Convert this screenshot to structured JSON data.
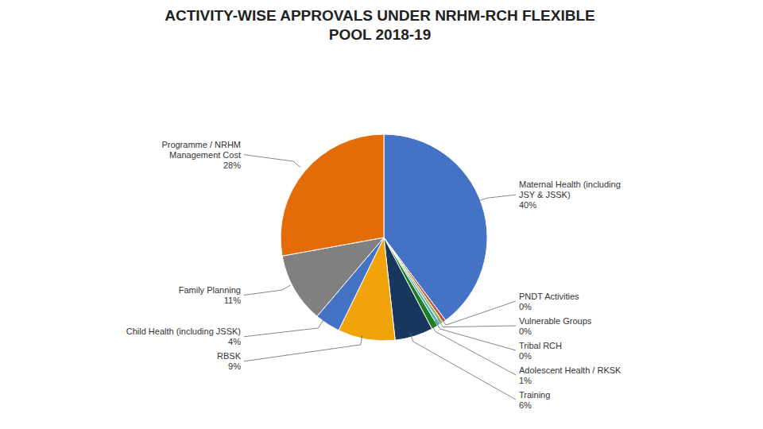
{
  "chart_data": {
    "type": "pie",
    "title": "ACTIVITY-WISE APPROVALS UNDER NRHM-RCH FLEXIBLE\nPOOL 2018-19",
    "categories": [
      "Maternal Health (including\nJSY & JSSK)",
      "PNDT Activities",
      "Vulnerable Groups",
      "Tribal RCH",
      "Adolescent Health / RKSK",
      "Training",
      "RBSK",
      "Child Health (including JSSK)",
      "Family Planning",
      "Programme / NRHM\nManagement Cost"
    ],
    "values": [
      40,
      0.5,
      0.5,
      0.5,
      1,
      6,
      9,
      4,
      11,
      28
    ],
    "value_labels": [
      "40%",
      "0%",
      "0%",
      "0%",
      "1%",
      "6%",
      "9%",
      "4%",
      "11%",
      "28%"
    ],
    "colors": [
      "#4472c4",
      "#c0504d",
      "#9bbb59",
      "#4bacc6",
      "#1f7e1f",
      "#17375e",
      "#f0a30a",
      "#4472c4",
      "#808080",
      "#e36c09"
    ],
    "data_labels": true
  }
}
